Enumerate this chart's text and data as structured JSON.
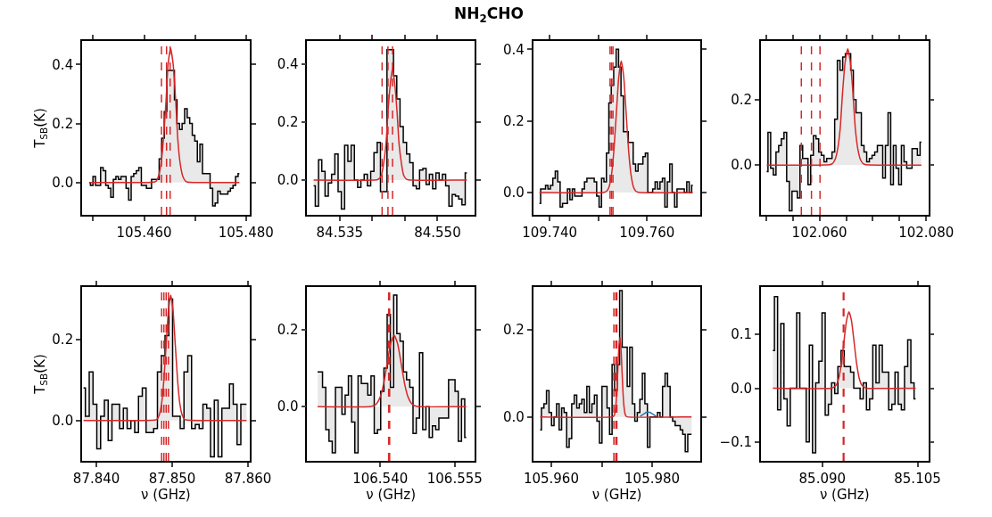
{
  "chart_data": [
    {
      "type": "step",
      "annotations": [
        "NH$_{2}$CHO"
      ],
      "ylabel": "T$_{SB}$(K)",
      "xlim": [
        105.4478,
        105.4807
      ],
      "ylim": [
        -0.11,
        0.48
      ],
      "xticks": [
        {
          "value": 105.45,
          "label": null
        },
        {
          "value": 105.46,
          "label": "105.460"
        },
        {
          "value": 105.47,
          "label": null
        },
        {
          "value": 105.48,
          "label": "105.480"
        }
      ],
      "yticks": [
        {
          "value": 0,
          "label": "0.0"
        },
        {
          "value": 0.2,
          "label": "0.2"
        },
        {
          "value": 0.4,
          "label": "0.4"
        }
      ],
      "series": [
        {
          "color": "#000000",
          "x": [
            105.4492,
            105.4497,
            105.4502,
            105.4507,
            105.4512,
            105.4517,
            105.4522,
            105.4527,
            105.4532,
            105.4537,
            105.4542,
            105.4547,
            105.4552,
            105.4557,
            105.4562,
            105.4567,
            105.4572,
            105.4577,
            105.4582,
            105.4587,
            105.4592,
            105.4597,
            105.4602,
            105.4607,
            105.4612,
            105.4617,
            105.4622,
            105.4627,
            105.4632,
            105.4637,
            105.4642,
            105.4647,
            105.4652,
            105.4657,
            105.4662,
            105.4667,
            105.4672,
            105.4677,
            105.4682,
            105.4687,
            105.4692,
            105.4697,
            105.4702,
            105.4707,
            105.4712,
            105.4717,
            105.4722,
            105.4727,
            105.4732,
            105.4737,
            105.4742,
            105.4747,
            105.4752,
            105.4757,
            105.4762,
            105.4767,
            105.4772,
            105.4777,
            105.4782,
            105.4787
          ],
          "values": [
            0.0,
            -0.01,
            0.02,
            -0.01,
            -0.01,
            0.05,
            0.04,
            -0.01,
            -0.02,
            -0.05,
            0.01,
            0.02,
            0.01,
            0.02,
            0.02,
            -0.02,
            -0.06,
            0.02,
            0.03,
            0.04,
            0.05,
            -0.01,
            -0.01,
            -0.02,
            -0.02,
            0.01,
            0.01,
            0.01,
            0.08,
            0.15,
            0.24,
            0.38,
            0.38,
            0.38,
            0.28,
            0.2,
            0.18,
            0.2,
            0.25,
            0.22,
            0.2,
            0.16,
            0.14,
            0.07,
            0.13,
            0.03,
            0.03,
            0.03,
            -0.02,
            -0.08,
            -0.07,
            -0.03,
            -0.04,
            -0.04,
            -0.04,
            -0.03,
            -0.02,
            -0.01,
            0.02,
            0.03
          ]
        },
        {
          "type": "line",
          "color": "#d62728",
          "x": [
            105.4492,
            105.4619,
            105.4624,
            105.4628,
            105.4633,
            105.4638,
            105.4643,
            105.4647,
            105.4652,
            105.4657,
            105.4662,
            105.4666,
            105.4671,
            105.4676,
            105.4681,
            105.4685,
            105.4787
          ],
          "values": [
            0,
            0.001,
            0.005,
            0.02,
            0.061,
            0.148,
            0.276,
            0.401,
            0.455,
            0.401,
            0.276,
            0.148,
            0.061,
            0.02,
            0.005,
            0.001,
            0
          ]
        }
      ],
      "ref_lines": [
        {
          "axis": "x",
          "value": 105.4634,
          "color": "#d62728",
          "line_style": "dashed"
        },
        {
          "axis": "x",
          "value": 105.4644,
          "color": "#d62728",
          "line_style": "dashed"
        },
        {
          "axis": "x",
          "value": 105.4651,
          "color": "#d62728",
          "line_style": "dashed"
        }
      ]
    },
    {
      "type": "step",
      "xlim": [
        84.53,
        84.5557
      ],
      "ylim": [
        -0.12,
        0.48
      ],
      "xticks": [
        {
          "value": 84.535,
          "label": "84.535"
        },
        {
          "value": 84.54,
          "label": null
        },
        {
          "value": 84.545,
          "label": null
        },
        {
          "value": 84.55,
          "label": "84.550"
        }
      ],
      "yticks": [
        {
          "value": 0,
          "label": "0.0"
        },
        {
          "value": 0.2,
          "label": "0.2"
        },
        {
          "value": 0.4,
          "label": "0.4"
        }
      ],
      "series": [
        {
          "color": "#000000",
          "x": [
            84.531,
            84.5315,
            84.532,
            84.5325,
            84.533,
            84.5335,
            84.534,
            84.5345,
            84.535,
            84.5355,
            84.536,
            84.5365,
            84.537,
            84.5375,
            84.538,
            84.5385,
            84.539,
            84.5395,
            84.54,
            84.5405,
            84.541,
            84.5415,
            84.542,
            84.5425,
            84.543,
            84.5435,
            84.544,
            84.5445,
            84.545,
            84.5455,
            84.546,
            84.5465,
            84.547,
            84.5475,
            84.548,
            84.5485,
            84.549,
            84.5495,
            84.55,
            84.5505,
            84.551,
            84.5515,
            84.552,
            84.5525,
            84.553,
            84.5535,
            84.554,
            84.5545
          ],
          "values": [
            -0.02,
            -0.09,
            0.07,
            0.03,
            -0.055,
            -0.01,
            0.02,
            0.09,
            -0.04,
            -0.1,
            0.12,
            0.065,
            0.12,
            0.0,
            -0.025,
            0.0,
            0.02,
            -0.02,
            0.03,
            0.095,
            0.13,
            -0.04,
            -0.04,
            0.45,
            0.45,
            0.36,
            0.28,
            0.185,
            0.13,
            0.09,
            0.06,
            -0.02,
            -0.03,
            0.035,
            0.04,
            -0.015,
            0.02,
            -0.03,
            0.025,
            0.0,
            0.02,
            -0.02,
            -0.09,
            -0.05,
            -0.055,
            -0.065,
            -0.085,
            0.025
          ]
        },
        {
          "type": "line",
          "color": "#d62728",
          "x": [
            84.531,
            84.5407,
            84.541,
            84.5414,
            84.5417,
            84.5421,
            84.5424,
            84.5428,
            84.5431,
            84.5434,
            84.5438,
            84.5441,
            84.5445,
            84.5448,
            84.5452,
            84.5455,
            84.5545
          ],
          "values": [
            0,
            0.001,
            0.004,
            0.017,
            0.052,
            0.125,
            0.234,
            0.34,
            0.386,
            0.34,
            0.234,
            0.125,
            0.052,
            0.017,
            0.004,
            0.001,
            0
          ]
        }
      ],
      "ref_lines": [
        {
          "axis": "x",
          "value": 84.5415,
          "color": "#d62728",
          "line_style": "dashed"
        },
        {
          "axis": "x",
          "value": 84.5424,
          "color": "#d62728",
          "line_style": "dashed"
        },
        {
          "axis": "x",
          "value": 84.5431,
          "color": "#d62728",
          "line_style": "dashed"
        }
      ]
    },
    {
      "type": "step",
      "xlim": [
        109.7366,
        109.771
      ],
      "ylim": [
        -0.062,
        0.423
      ],
      "xticks": [
        {
          "value": 109.74,
          "label": "109.740"
        },
        {
          "value": 109.75,
          "label": null
        },
        {
          "value": 109.76,
          "label": "109.760"
        }
      ],
      "yticks": [
        {
          "value": 0,
          "label": "0.0"
        },
        {
          "value": 0.2,
          "label": "0.2"
        },
        {
          "value": 0.4,
          "label": "0.4"
        }
      ],
      "series": [
        {
          "color": "#000000",
          "x": [
            109.7379,
            109.7384,
            109.7389,
            109.7394,
            109.7399,
            109.7404,
            109.7409,
            109.7414,
            109.7419,
            109.7424,
            109.7429,
            109.7434,
            109.7439,
            109.7444,
            109.7449,
            109.7454,
            109.7459,
            109.7464,
            109.7469,
            109.7474,
            109.7479,
            109.7484,
            109.7489,
            109.7494,
            109.7499,
            109.7504,
            109.7509,
            109.7514,
            109.7519,
            109.7524,
            109.7529,
            109.7534,
            109.7539,
            109.7544,
            109.7549,
            109.7554,
            109.7559,
            109.7564,
            109.7569,
            109.7574,
            109.7579,
            109.7584,
            109.7589,
            109.7594,
            109.7599,
            109.7604,
            109.7609,
            109.7614,
            109.7619,
            109.7624,
            109.7629,
            109.7634,
            109.7639,
            109.7644,
            109.7649,
            109.7654,
            109.7659,
            109.7664,
            109.7669,
            109.7674,
            109.7679,
            109.7684,
            109.7689,
            109.7694
          ],
          "values": [
            -0.03,
            0.01,
            0.01,
            0.02,
            0.01,
            0.02,
            0.04,
            0.06,
            0.03,
            -0.04,
            -0.03,
            -0.03,
            0.01,
            -0.02,
            0.01,
            -0.01,
            -0.01,
            -0.01,
            0.01,
            0.03,
            0.04,
            0.04,
            0.04,
            0.03,
            -0.01,
            -0.04,
            0.04,
            0.03,
            0.11,
            0.25,
            0.3,
            0.35,
            0.4,
            0.35,
            0.27,
            0.17,
            0.17,
            0.14,
            0.14,
            0.08,
            0.06,
            0.08,
            0.08,
            0.1,
            0.11,
            0.0,
            0.0,
            0.01,
            0.03,
            0.01,
            0.03,
            0.04,
            -0.04,
            0.03,
            0.08,
            0.0,
            -0.04,
            0.01,
            0.01,
            0.01,
            0.0,
            0.03,
            0.0,
            0.02
          ]
        },
        {
          "type": "line",
          "color": "#d62728",
          "x": [
            109.7379,
            109.7512,
            109.7517,
            109.7522,
            109.7527,
            109.7532,
            109.7537,
            109.7542,
            109.7547,
            109.7552,
            109.7557,
            109.7562,
            109.7567,
            109.7572,
            109.7577,
            109.7582,
            109.7694
          ],
          "values": [
            0,
            0.001,
            0.004,
            0.016,
            0.05,
            0.119,
            0.223,
            0.324,
            0.367,
            0.324,
            0.223,
            0.119,
            0.05,
            0.016,
            0.004,
            0.001,
            0
          ]
        }
      ],
      "ref_lines": [
        {
          "axis": "x",
          "value": 109.7524,
          "color": "#d62728",
          "line_style": "dashed"
        },
        {
          "axis": "x",
          "value": 109.7527,
          "color": "#d62728",
          "line_style": "dashed"
        },
        {
          "axis": "x",
          "value": 109.753,
          "color": "#d62728",
          "line_style": "dashed"
        }
      ]
    },
    {
      "type": "step",
      "xlim": [
        102.049,
        102.0804
      ],
      "ylim": [
        -0.152,
        0.379
      ],
      "xticks": [
        {
          "value": 102.05,
          "label": null
        },
        {
          "value": 102.055,
          "label": null
        },
        {
          "value": 102.06,
          "label": "102.060"
        },
        {
          "value": 102.065,
          "label": null
        },
        {
          "value": 102.07,
          "label": null
        },
        {
          "value": 102.075,
          "label": null
        },
        {
          "value": 102.08,
          "label": "102.080"
        }
      ],
      "yticks": [
        {
          "value": 0,
          "label": "0.0"
        },
        {
          "value": 0.2,
          "label": "0.2"
        }
      ],
      "series": [
        {
          "color": "#000000",
          "x": [
            102.0501,
            102.0506,
            102.0511,
            102.0516,
            102.0521,
            102.0526,
            102.0531,
            102.0536,
            102.0541,
            102.0546,
            102.0551,
            102.0556,
            102.0561,
            102.0566,
            102.0571,
            102.0576,
            102.0581,
            102.0586,
            102.0591,
            102.0596,
            102.0601,
            102.0606,
            102.0611,
            102.0616,
            102.0621,
            102.0626,
            102.0631,
            102.0636,
            102.0641,
            102.0646,
            102.0651,
            102.0656,
            102.0661,
            102.0666,
            102.0671,
            102.0676,
            102.0681,
            102.0686,
            102.0691,
            102.0696,
            102.0701,
            102.0706,
            102.0711,
            102.0716,
            102.0721,
            102.0726,
            102.0731,
            102.0736,
            102.0741,
            102.0746,
            102.0751,
            102.0756,
            102.0761,
            102.0766,
            102.0771,
            102.0776,
            102.0781,
            102.0786,
            102.0791
          ],
          "values": [
            -0.02,
            0.1,
            -0.01,
            -0.03,
            0.04,
            0.06,
            0.08,
            0.1,
            -0.05,
            -0.14,
            -0.08,
            -0.08,
            -0.1,
            0.06,
            0.02,
            0.02,
            -0.06,
            0.03,
            0.09,
            0.08,
            0.04,
            0.03,
            0.01,
            0.02,
            0.02,
            0.04,
            0.14,
            0.32,
            0.29,
            0.33,
            0.34,
            0.34,
            0.29,
            0.2,
            0.16,
            0.16,
            0.06,
            0.04,
            0.01,
            0.02,
            0.03,
            0.04,
            0.06,
            0.06,
            -0.04,
            0.06,
            0.16,
            -0.06,
            0.06,
            -0.01,
            -0.06,
            0.06,
            0.01,
            -0.01,
            -0.01,
            0.05,
            0.05,
            0.03,
            0.07
          ]
        },
        {
          "type": "line",
          "color": "#d62728",
          "x": [
            102.0501,
            102.0619,
            102.0624,
            102.0629,
            102.0634,
            102.0639,
            102.0643,
            102.0648,
            102.0653,
            102.0658,
            102.0663,
            102.0667,
            102.0672,
            102.0677,
            102.0682,
            102.0687,
            102.0791
          ],
          "values": [
            0,
            0.001,
            0.004,
            0.016,
            0.048,
            0.115,
            0.215,
            0.313,
            0.355,
            0.313,
            0.215,
            0.115,
            0.048,
            0.016,
            0.004,
            0.001,
            0
          ]
        }
      ],
      "ref_lines": [
        {
          "axis": "x",
          "value": 102.0566,
          "color": "#d62728",
          "line_style": "dashed"
        },
        {
          "axis": "x",
          "value": 102.0585,
          "color": "#d62728",
          "line_style": "dashed"
        },
        {
          "axis": "x",
          "value": 102.0601,
          "color": "#d62728",
          "line_style": "dashed"
        }
      ]
    },
    {
      "type": "step",
      "ylabel": "T$_{SB}$(K)",
      "xlabel": "ν (GHz)",
      "xlim": [
        87.8381,
        87.8602
      ],
      "ylim": [
        -0.1,
        0.33
      ],
      "xticks": [
        {
          "value": 87.84,
          "label": "87.840"
        },
        {
          "value": 87.85,
          "label": "87.850"
        },
        {
          "value": 87.86,
          "label": "87.860"
        }
      ],
      "yticks": [
        {
          "value": 0,
          "label": "0.0"
        },
        {
          "value": 0.2,
          "label": "0.2"
        }
      ],
      "series": [
        {
          "color": "#000000",
          "x": [
            87.8383,
            87.8388,
            87.8393,
            87.8398,
            87.8403,
            87.8408,
            87.8413,
            87.8418,
            87.8423,
            87.8428,
            87.8433,
            87.8438,
            87.8443,
            87.8448,
            87.8453,
            87.8458,
            87.8463,
            87.8468,
            87.8473,
            87.8478,
            87.8483,
            87.8488,
            87.8493,
            87.8498,
            87.8503,
            87.8508,
            87.8513,
            87.8518,
            87.8523,
            87.8528,
            87.8533,
            87.8538,
            87.8543,
            87.8548,
            87.8553,
            87.8558,
            87.8563,
            87.8568,
            87.8573,
            87.8578,
            87.8583,
            87.8588,
            87.8593,
            87.8598
          ],
          "values": [
            0.08,
            0.01,
            0.12,
            0.04,
            -0.07,
            0.01,
            0.05,
            -0.05,
            0.04,
            0.04,
            -0.02,
            0.03,
            -0.02,
            0.0,
            -0.03,
            0.06,
            0.08,
            -0.03,
            -0.03,
            -0.02,
            0.12,
            0.16,
            0.21,
            0.3,
            0.01,
            0.01,
            -0.02,
            0.12,
            0.16,
            -0.02,
            -0.01,
            -0.02,
            0.04,
            0.03,
            -0.09,
            0.05,
            -0.09,
            0.03,
            0.03,
            0.09,
            0.04,
            -0.06,
            0.04,
            0.04
          ]
        },
        {
          "type": "line",
          "color": "#d62728",
          "x": [
            87.8383,
            87.8477,
            87.848,
            87.8483,
            87.8486,
            87.8489,
            87.8492,
            87.8495,
            87.8498,
            87.8501,
            87.8504,
            87.8507,
            87.851,
            87.8513,
            87.8516,
            87.8519,
            87.8598
          ],
          "values": [
            0,
            0.001,
            0.003,
            0.014,
            0.042,
            0.101,
            0.188,
            0.273,
            0.31,
            0.273,
            0.188,
            0.101,
            0.042,
            0.014,
            0.003,
            0.001,
            0
          ]
        }
      ],
      "ref_lines": [
        {
          "axis": "x",
          "value": 87.8486,
          "color": "#d62728",
          "line_style": "dashed"
        },
        {
          "axis": "x",
          "value": 87.8489,
          "color": "#d62728",
          "line_style": "dashed"
        },
        {
          "axis": "x",
          "value": 87.8492,
          "color": "#d62728",
          "line_style": "dashed"
        },
        {
          "axis": "x",
          "value": 87.8495,
          "color": "#d62728",
          "line_style": "dashed"
        }
      ]
    },
    {
      "type": "step",
      "xlabel": "ν (GHz)",
      "xlim": [
        106.5253,
        106.559
      ],
      "ylim": [
        -0.141,
        0.311
      ],
      "xticks": [
        {
          "value": 106.54,
          "label": "106.540"
        },
        {
          "value": 106.555,
          "label": "106.555"
        }
      ],
      "yticks": [
        {
          "value": 0,
          "label": "0.0"
        },
        {
          "value": 0.2,
          "label": "0.2"
        }
      ],
      "series": [
        {
          "color": "#000000",
          "x": [
            106.5274,
            106.5281,
            106.5287,
            106.5294,
            106.53,
            106.5307,
            106.5313,
            106.532,
            106.5326,
            106.5333,
            106.5339,
            106.5346,
            106.5352,
            106.5359,
            106.5365,
            106.5372,
            106.5378,
            106.5385,
            106.5391,
            106.5398,
            106.5404,
            106.5411,
            106.5417,
            106.5424,
            106.543,
            106.5437,
            106.5443,
            106.545,
            106.5456,
            106.5463,
            106.5469,
            106.5476,
            106.5482,
            106.5489,
            106.5495,
            106.5502,
            106.5508,
            106.5515,
            106.5521,
            106.5528,
            106.5534,
            106.5541,
            106.5547,
            106.5554,
            106.556,
            106.5567,
            106.5573
          ],
          "values": [
            0.09,
            0.09,
            0.05,
            -0.06,
            -0.09,
            -0.12,
            0.05,
            0.05,
            -0.02,
            0.03,
            0.08,
            -0.04,
            -0.12,
            0.08,
            0.06,
            0.06,
            0.03,
            0.08,
            -0.07,
            -0.06,
            0.04,
            0.1,
            0.24,
            0.05,
            0.29,
            0.19,
            0.17,
            0.09,
            0.07,
            0.05,
            -0.07,
            -0.03,
            0.14,
            -0.06,
            0.0,
            -0.08,
            -0.05,
            -0.06,
            -0.03,
            -0.03,
            -0.03,
            0.07,
            0.07,
            0.04,
            -0.09,
            0.02,
            -0.08
          ]
        },
        {
          "type": "line",
          "color": "#d62728",
          "x": [
            106.5274,
            106.5379,
            106.5386,
            106.5393,
            106.54,
            106.5407,
            106.5414,
            106.5421,
            106.5428,
            106.5435,
            106.5442,
            106.5449,
            106.5456,
            106.5463,
            106.547,
            106.5477,
            106.5573
          ],
          "values": [
            0,
            0.0,
            0.002,
            0.008,
            0.025,
            0.06,
            0.113,
            0.164,
            0.186,
            0.164,
            0.113,
            0.06,
            0.025,
            0.008,
            0.002,
            0.0,
            0
          ]
        }
      ],
      "ref_lines": [
        {
          "axis": "x",
          "value": 106.5417,
          "color": "#d62728",
          "line_style": "dashed"
        },
        {
          "axis": "x",
          "value": 106.5419,
          "color": "#d62728",
          "line_style": "dashed"
        }
      ]
    },
    {
      "type": "step",
      "xlabel": "ν (GHz)",
      "xlim": [
        105.9564,
        105.9896
      ],
      "ylim": [
        -0.101,
        0.298
      ],
      "xticks": [
        {
          "value": 105.96,
          "label": "105.960"
        },
        {
          "value": 105.97,
          "label": null
        },
        {
          "value": 105.98,
          "label": "105.980"
        }
      ],
      "yticks": [
        {
          "value": 0,
          "label": "0.0"
        },
        {
          "value": 0.2,
          "label": "0.2"
        }
      ],
      "series": [
        {
          "color": "#000000",
          "x": [
            105.9578,
            105.9583,
            105.9588,
            105.9593,
            105.9598,
            105.9603,
            105.9608,
            105.9613,
            105.9618,
            105.9623,
            105.9628,
            105.9633,
            105.9638,
            105.9643,
            105.9648,
            105.9653,
            105.9658,
            105.9663,
            105.9668,
            105.9673,
            105.9678,
            105.9683,
            105.9688,
            105.9693,
            105.9698,
            105.9703,
            105.9708,
            105.9713,
            105.9718,
            105.9723,
            105.9728,
            105.9733,
            105.9738,
            105.9743,
            105.9748,
            105.9753,
            105.9758,
            105.9763,
            105.9768,
            105.9773,
            105.9778,
            105.9783,
            105.9788,
            105.9793,
            105.9798,
            105.9803,
            105.9808,
            105.9813,
            105.9818,
            105.9823,
            105.9828,
            105.9833,
            105.9838,
            105.9843,
            105.9848,
            105.9853,
            105.9858,
            105.9863,
            105.9868,
            105.9873,
            105.9878
          ],
          "values": [
            -0.03,
            0.02,
            0.03,
            0.06,
            0.01,
            -0.02,
            0.0,
            0.03,
            -0.03,
            0.02,
            0.01,
            -0.07,
            -0.05,
            0.03,
            0.05,
            0.02,
            0.03,
            0.04,
            0.01,
            0.07,
            0.01,
            0.03,
            0.05,
            -0.01,
            -0.06,
            0.07,
            0.07,
            0.02,
            -0.04,
            0.12,
            0.06,
            0.12,
            0.29,
            0.16,
            0.16,
            0.07,
            0.16,
            0.03,
            -0.01,
            0.01,
            0.04,
            0.1,
            0.03,
            -0.07,
            0.0,
            0.0,
            0.0,
            0.01,
            0.0,
            0.07,
            0.1,
            0.07,
            0.0,
            -0.01,
            -0.02,
            -0.02,
            -0.03,
            -0.04,
            -0.08,
            -0.04,
            -0.04
          ]
        },
        {
          "type": "line",
          "color": "#1f77b4",
          "x": [
            105.9776,
            105.978,
            105.9784,
            105.9788,
            105.9792,
            105.9796,
            105.98,
            105.9804,
            105.9808
          ],
          "values": [
            0.001,
            0.004,
            0.007,
            0.01,
            0.011,
            0.01,
            0.007,
            0.004,
            0.001
          ]
        },
        {
          "type": "line",
          "color": "#d62728",
          "x": [
            105.9578,
            105.9722,
            105.9724,
            105.9726,
            105.9728,
            105.973,
            105.9732,
            105.9734,
            105.9736,
            105.9738,
            105.974,
            105.9742,
            105.9744,
            105.9746,
            105.9748,
            105.975,
            105.9878
          ],
          "values": [
            0,
            0.0,
            0.002,
            0.008,
            0.025,
            0.059,
            0.111,
            0.161,
            0.183,
            0.161,
            0.111,
            0.059,
            0.025,
            0.008,
            0.002,
            0.0,
            0
          ]
        }
      ],
      "ref_lines": [
        {
          "axis": "x",
          "value": 105.9724,
          "color": "#d62728",
          "line_style": "dashed"
        },
        {
          "axis": "x",
          "value": 105.9728,
          "color": "#d62728",
          "line_style": "dashed"
        },
        {
          "axis": "x",
          "value": 105.973,
          "color": "#d62728",
          "line_style": "dashed"
        }
      ]
    },
    {
      "type": "step",
      "xlabel": "ν (GHz)",
      "xlim": [
        85.0803,
        85.1067
      ],
      "ylim": [
        -0.135,
        0.188
      ],
      "xticks": [
        {
          "value": 85.09,
          "label": "85.090"
        },
        {
          "value": 85.105,
          "label": "85.105"
        }
      ],
      "yticks": [
        {
          "value": -0.1,
          "label": "−0.1"
        },
        {
          "value": 0,
          "label": "0.0"
        },
        {
          "value": 0.1,
          "label": "0.1"
        }
      ],
      "series": [
        {
          "color": "#000000",
          "x": [
            85.0822,
            85.0827,
            85.0832,
            85.0837,
            85.0842,
            85.0847,
            85.0852,
            85.0857,
            85.0862,
            85.0867,
            85.0872,
            85.0877,
            85.0882,
            85.0887,
            85.0892,
            85.0897,
            85.0902,
            85.0907,
            85.0912,
            85.0917,
            85.0922,
            85.0927,
            85.0932,
            85.0937,
            85.0942,
            85.0947,
            85.0952,
            85.0957,
            85.0962,
            85.0967,
            85.0972,
            85.0977,
            85.0982,
            85.0987,
            85.0992,
            85.0997,
            85.1002,
            85.1007,
            85.1012,
            85.1017,
            85.1022,
            85.1027,
            85.1032,
            85.1037,
            85.1042,
            85.1047
          ],
          "values": [
            0.07,
            0.17,
            -0.04,
            0.12,
            -0.02,
            -0.07,
            0.0,
            0.0,
            0.14,
            0.0,
            0.0,
            -0.1,
            0.08,
            -0.12,
            0.01,
            0.05,
            0.14,
            -0.05,
            -0.03,
            0.01,
            -0.01,
            0.04,
            0.07,
            0.04,
            0.04,
            0.03,
            0.0,
            0.0,
            -0.02,
            0.01,
            -0.04,
            -0.02,
            0.08,
            0.01,
            0.08,
            0.03,
            0.03,
            -0.04,
            -0.03,
            0.03,
            -0.03,
            -0.04,
            0.04,
            0.09,
            0.01,
            -0.02
          ]
        },
        {
          "type": "line",
          "color": "#d62728",
          "x": [
            85.0822,
            85.0914,
            85.0918,
            85.0922,
            85.0926,
            85.093,
            85.0934,
            85.0938,
            85.0942,
            85.0946,
            85.095,
            85.0954,
            85.0958,
            85.0962,
            85.0966,
            85.097,
            85.1047
          ],
          "values": [
            0,
            0.0,
            0.002,
            0.006,
            0.019,
            0.046,
            0.086,
            0.125,
            0.142,
            0.125,
            0.086,
            0.046,
            0.019,
            0.006,
            0.002,
            0.0,
            0
          ]
        }
      ],
      "ref_lines": [
        {
          "axis": "x",
          "value": 85.0933,
          "color": "#d62728",
          "line_style": "dashed"
        },
        {
          "axis": "x",
          "value": 85.0934,
          "color": "#d62728",
          "line_style": "dashed"
        }
      ]
    }
  ]
}
